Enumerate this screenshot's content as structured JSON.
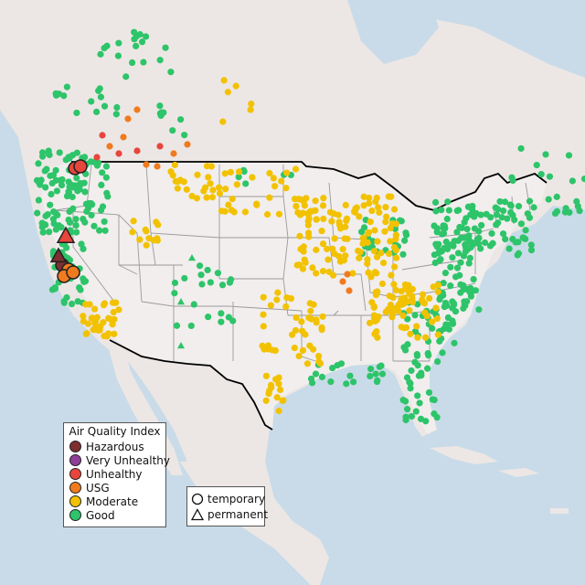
{
  "colors": {
    "ocean": "#c9dbe8",
    "land": "#ece7e5",
    "land_us": "#f1eeed",
    "state_border": "#9a9a9a",
    "country_border": "#000000",
    "hazardous": "#7e2f2f",
    "very_unhealthy": "#8f3f97",
    "unhealthy": "#e8453c",
    "usg": "#f07b1e",
    "moderate": "#f2c200",
    "good": "#2ec46a"
  },
  "legend": {
    "title": "Air Quality Index",
    "items": [
      {
        "label": "Hazardous",
        "color_key": "hazardous"
      },
      {
        "label": "Very Unhealthy",
        "color_key": "very_unhealthy"
      },
      {
        "label": "Unhealthy",
        "color_key": "unhealthy"
      },
      {
        "label": "USG",
        "color_key": "usg"
      },
      {
        "label": "Moderate",
        "color_key": "moderate"
      },
      {
        "label": "Good",
        "color_key": "good"
      }
    ]
  },
  "monitor_legend": {
    "items": [
      {
        "label": "temporary",
        "shape": "circle-icon"
      },
      {
        "label": "permanent",
        "shape": "triangle-icon"
      }
    ]
  }
}
